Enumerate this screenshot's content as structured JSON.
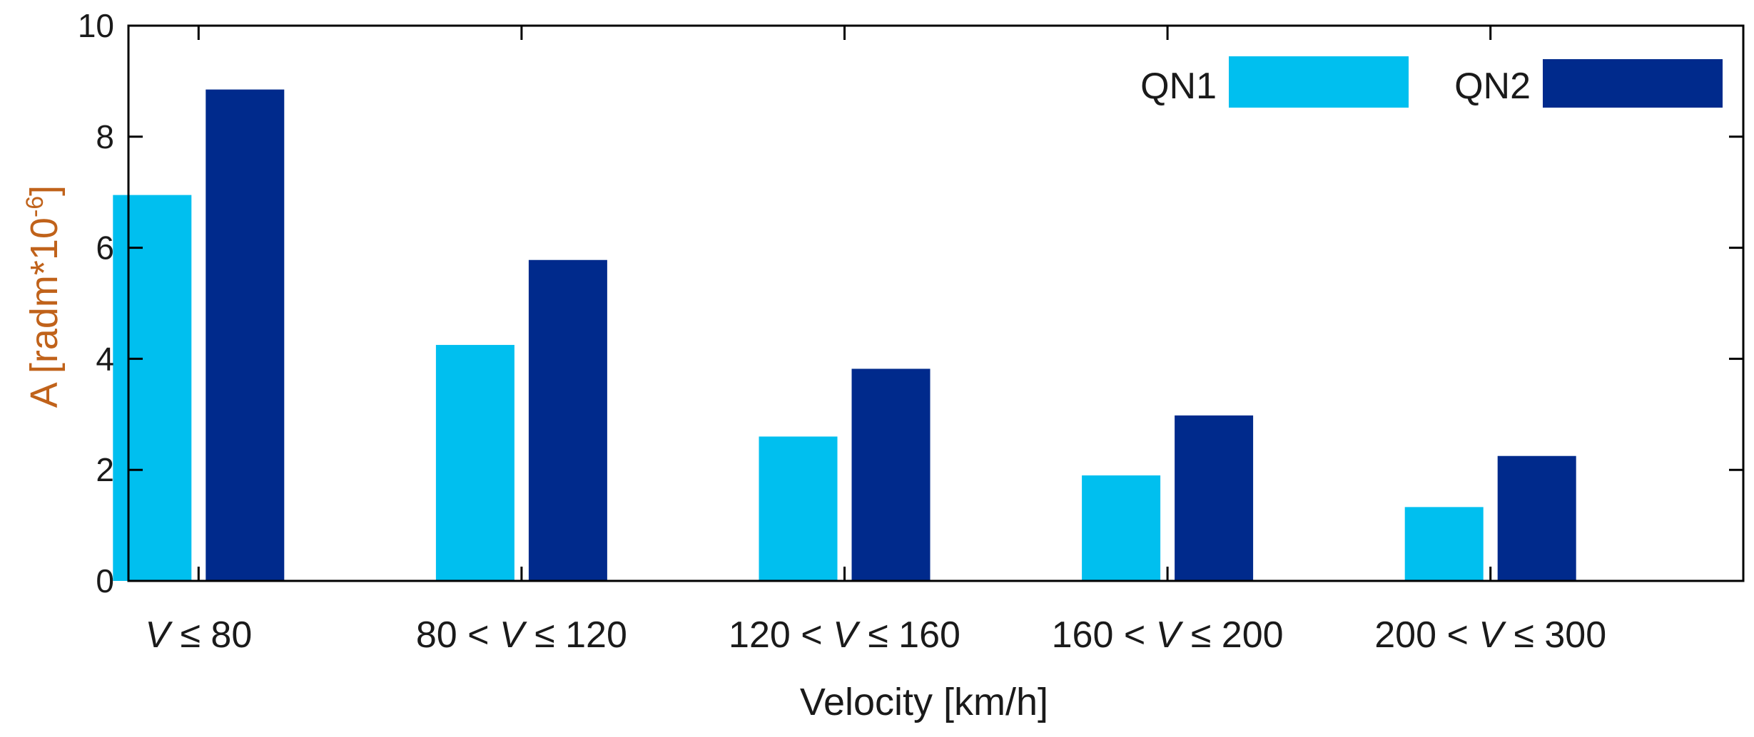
{
  "chart_data": {
    "type": "bar",
    "categories": [
      {
        "pre": "",
        "var": "V",
        "post": " ≤ 80"
      },
      {
        "pre": "80 < ",
        "var": "V",
        "post": " ≤ 120"
      },
      {
        "pre": "120 < ",
        "var": "V",
        "post": " ≤ 160"
      },
      {
        "pre": "160 < ",
        "var": "V",
        "post": " ≤ 200"
      },
      {
        "pre": "200 < ",
        "var": "V",
        "post": " ≤ 300"
      }
    ],
    "series": [
      {
        "name": "QN1",
        "color": "#00BFEF",
        "values": [
          6.95,
          4.25,
          2.6,
          1.9,
          1.33
        ]
      },
      {
        "name": "QN2",
        "color": "#002A8C",
        "values": [
          8.85,
          5.78,
          3.82,
          2.98,
          2.25
        ]
      }
    ],
    "xlabel": "Velocity [km/h]",
    "ylabel": {
      "main": "A [radm*10",
      "sup": "-6",
      "close": "]"
    },
    "ylabel_color": "#C0621A",
    "ylim": [
      0,
      10
    ],
    "yticks": [
      "0",
      "2",
      "4",
      "6",
      "8",
      "10"
    ],
    "legend_position": "top-right",
    "grid": false
  }
}
